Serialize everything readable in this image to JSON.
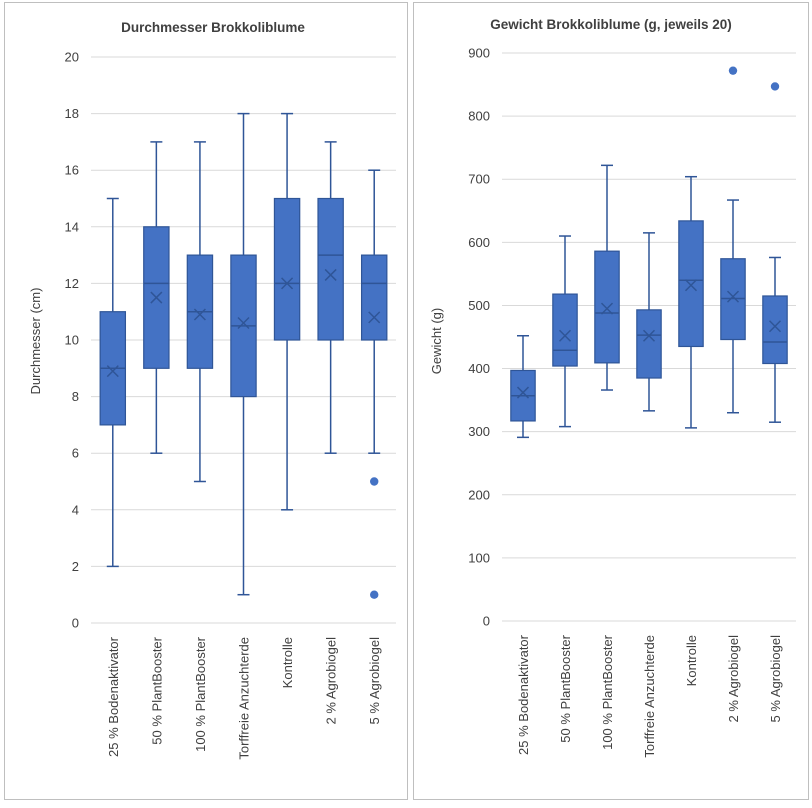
{
  "colors": {
    "box_fill": "#4472c4",
    "box_stroke": "#2f5597",
    "gridline": "#d9d9d9",
    "text": "#404040"
  },
  "chart_data": [
    {
      "type": "boxplot",
      "title": "Durchmesser Brokkoliblume",
      "xlabel": "",
      "ylabel": "Durchmesser (cm)",
      "ylim": [
        0,
        20
      ],
      "yticks": [
        0,
        2,
        4,
        6,
        8,
        10,
        12,
        14,
        16,
        18,
        20
      ],
      "grid": true,
      "categories": [
        "25 % Bodenaktivator",
        "50 % PlantBooster",
        "100 % PlantBooster",
        "Torffreie Anzuchterde",
        "Kontrolle",
        "2 % Agrobiogel",
        "5 % Agrobiogel"
      ],
      "boxes": [
        {
          "min": 2,
          "q1": 7,
          "median": 9,
          "q3": 11,
          "max": 15,
          "mean": 8.9,
          "outliers": []
        },
        {
          "min": 6,
          "q1": 9,
          "median": 12,
          "q3": 14,
          "max": 17,
          "mean": 11.5,
          "outliers": []
        },
        {
          "min": 5,
          "q1": 9,
          "median": 11,
          "q3": 13,
          "max": 17,
          "mean": 10.9,
          "outliers": []
        },
        {
          "min": 1,
          "q1": 8,
          "median": 10.5,
          "q3": 13,
          "max": 18,
          "mean": 10.6,
          "outliers": []
        },
        {
          "min": 4,
          "q1": 10,
          "median": 12,
          "q3": 15,
          "max": 18,
          "mean": 12,
          "outliers": []
        },
        {
          "min": 6,
          "q1": 10,
          "median": 13,
          "q3": 15,
          "max": 17,
          "mean": 12.3,
          "outliers": []
        },
        {
          "min": 6,
          "q1": 10,
          "median": 12,
          "q3": 13,
          "max": 16,
          "mean": 10.8,
          "outliers": [
            5,
            1
          ]
        }
      ]
    },
    {
      "type": "boxplot",
      "title": "Gewicht Brokkoliblume (g, jeweils 20)",
      "xlabel": "",
      "ylabel": "Gewicht (g)",
      "ylim": [
        0,
        900
      ],
      "yticks": [
        0,
        100,
        200,
        300,
        400,
        500,
        600,
        700,
        800,
        900
      ],
      "grid": true,
      "categories": [
        "25 % Bodenaktivator",
        "50 % PlantBooster",
        "100 % PlantBooster",
        "Torffreie Anzuchterde",
        "Kontrolle",
        "2 % Agrobiogel",
        "5 % Agrobiogel"
      ],
      "boxes": [
        {
          "min": 291,
          "q1": 317,
          "median": 357,
          "q3": 397,
          "max": 452,
          "mean": 362,
          "outliers": []
        },
        {
          "min": 308,
          "q1": 404,
          "median": 429,
          "q3": 518,
          "max": 610,
          "mean": 452,
          "outliers": []
        },
        {
          "min": 366,
          "q1": 409,
          "median": 488,
          "q3": 586,
          "max": 722,
          "mean": 495,
          "outliers": []
        },
        {
          "min": 333,
          "q1": 385,
          "median": 453,
          "q3": 493,
          "max": 615,
          "mean": 452,
          "outliers": []
        },
        {
          "min": 306,
          "q1": 435,
          "median": 540,
          "q3": 634,
          "max": 704,
          "mean": 532,
          "outliers": []
        },
        {
          "min": 330,
          "q1": 446,
          "median": 511,
          "q3": 574,
          "max": 667,
          "mean": 514,
          "outliers": [
            872
          ]
        },
        {
          "min": 315,
          "q1": 408,
          "median": 442,
          "q3": 515,
          "max": 576,
          "mean": 467,
          "outliers": [
            847
          ]
        }
      ]
    }
  ]
}
